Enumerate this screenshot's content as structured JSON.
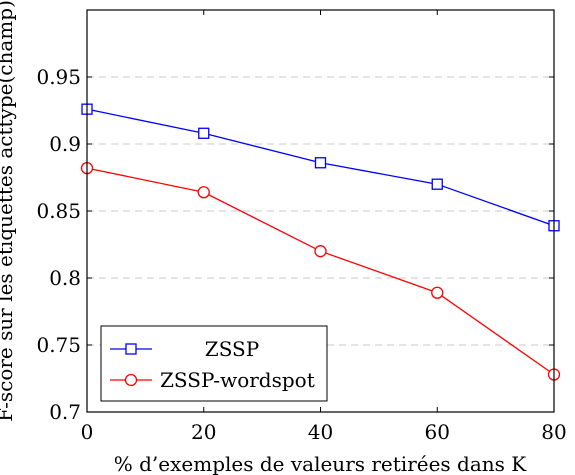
{
  "chart_data": {
    "type": "line",
    "xlabel": "% d’exemples de valeurs retirées dans K",
    "ylabel": "F-score sur les étiquettes acttype(champ)",
    "xlim": [
      0,
      80
    ],
    "ylim": [
      0.7,
      1.0
    ],
    "x_ticks": [
      "0",
      "20",
      "40",
      "60",
      "80"
    ],
    "y_ticks": [
      "0.7",
      "0.75",
      "0.8",
      "0.85",
      "0.9",
      "0.95"
    ],
    "grid": "horizontal dashed",
    "legend_position": "bottom-left",
    "x": [
      0,
      20,
      40,
      60,
      80
    ],
    "series": [
      {
        "name": "ZSSP",
        "color": "#0000ff",
        "marker": "square",
        "values": [
          0.926,
          0.908,
          0.886,
          0.87,
          0.839
        ]
      },
      {
        "name": "ZSSP-wordspot",
        "color": "#ff0000",
        "marker": "circle",
        "values": [
          0.882,
          0.864,
          0.82,
          0.789,
          0.728
        ]
      }
    ]
  }
}
